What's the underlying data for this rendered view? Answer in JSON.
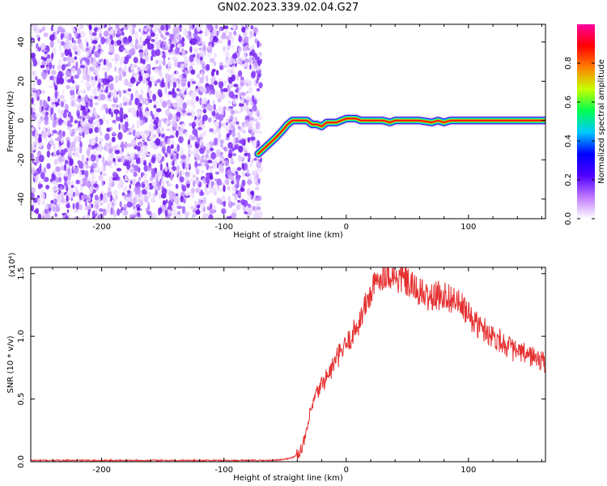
{
  "figure": {
    "title": "GN02.2023.339.02.04.G27"
  },
  "chart_data": [
    {
      "type": "heatmap",
      "xlabel": "Height of straight line (km)",
      "ylabel": "Frequency (Hz)",
      "xlim": [
        -258,
        163
      ],
      "ylim": [
        -50,
        49
      ],
      "x_ticks": [
        "-200",
        "-100",
        "0",
        "100"
      ],
      "y_ticks": [
        "-40",
        "-20",
        "0",
        "20",
        "40"
      ],
      "colorbar": {
        "label": "Normalized spectral amplitude",
        "range": [
          0,
          1
        ],
        "ticks": [
          "0.0",
          "0.2",
          "0.4",
          "0.6",
          "0.8"
        ],
        "colors": [
          "#ffffff",
          "#c078ff",
          "#5000ff",
          "#0000ff",
          "#00c8ff",
          "#00ff50",
          "#c8ff00",
          "#ff8000",
          "#ff0000",
          "#ff00a0"
        ]
      },
      "noise_region": {
        "x_range": [
          -258,
          -70
        ],
        "freq_range": [
          -50,
          49
        ]
      },
      "ridge": {
        "x": [
          -72,
          -65,
          -58,
          -52,
          -48,
          -44,
          -40,
          -36,
          -32,
          -28,
          -24,
          -20,
          -16,
          -12,
          -8,
          -4,
          0,
          4,
          8,
          12,
          20,
          30,
          36,
          40,
          50,
          60,
          70,
          75,
          80,
          85,
          90,
          100,
          110,
          120,
          130,
          140,
          150,
          163
        ],
        "freq": [
          -17,
          -13,
          -9,
          -5,
          -2,
          0,
          0,
          0,
          0,
          -2,
          -2,
          -3,
          -1,
          -1,
          -1,
          0,
          1,
          1,
          1,
          0,
          0,
          0,
          -1,
          0,
          0,
          0,
          -1,
          0,
          -1,
          0,
          0,
          0,
          0,
          0,
          0,
          0,
          0,
          0
        ]
      }
    },
    {
      "type": "line",
      "xlabel": "Height of straight line (km)",
      "ylabel": "SNR (10 * v/v)",
      "y_multiplier": "(x10⁴)",
      "xlim": [
        -258,
        163
      ],
      "ylim": [
        0,
        1.55
      ],
      "x_ticks": [
        "-200",
        "-100",
        "0",
        "100"
      ],
      "y_ticks": [
        "0.0",
        "0.5",
        "1.0",
        "1.5"
      ],
      "series": [
        {
          "color": "#e53030",
          "x": [
            -258,
            -100,
            -60,
            -50,
            -42,
            -38,
            -34,
            -30,
            -26,
            -22,
            -18,
            -14,
            -10,
            -6,
            -2,
            2,
            6,
            10,
            14,
            18,
            22,
            26,
            30,
            34,
            38,
            42,
            46,
            50,
            56,
            62,
            68,
            74,
            80,
            86,
            90,
            96,
            102,
            108,
            114,
            120,
            126,
            132,
            138,
            144,
            150,
            156,
            163
          ],
          "y": [
            0.01,
            0.01,
            0.01,
            0.02,
            0.04,
            0.08,
            0.17,
            0.35,
            0.5,
            0.58,
            0.65,
            0.7,
            0.78,
            0.85,
            0.9,
            0.96,
            1.03,
            1.1,
            1.2,
            1.3,
            1.38,
            1.45,
            1.5,
            1.52,
            1.48,
            1.45,
            1.47,
            1.42,
            1.38,
            1.34,
            1.3,
            1.32,
            1.33,
            1.3,
            1.28,
            1.22,
            1.15,
            1.08,
            1.05,
            1.0,
            0.97,
            0.92,
            0.88,
            0.86,
            0.85,
            0.82,
            0.78
          ]
        }
      ]
    }
  ]
}
